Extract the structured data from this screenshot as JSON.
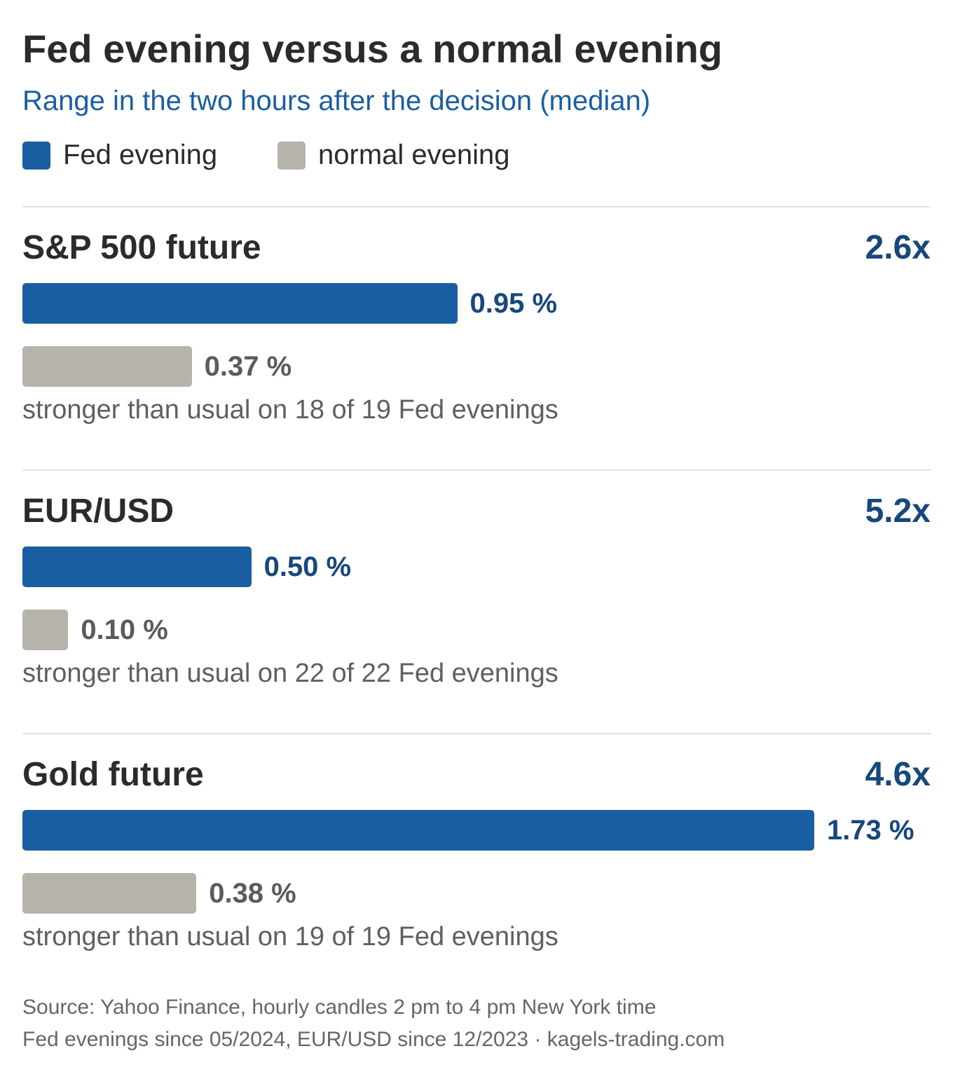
{
  "title": "Fed evening versus a normal evening",
  "subtitle": "Range in the two hours after the decision (median)",
  "legend": [
    {
      "label": "Fed evening",
      "color": "#1a5ea2"
    },
    {
      "label": "normal evening",
      "color": "#b6b3aa"
    }
  ],
  "chart_data": {
    "type": "bar",
    "orientation": "horizontal",
    "unit": "%",
    "xlim": [
      0,
      1.73
    ],
    "series_names": [
      "Fed evening",
      "normal evening"
    ],
    "panels": [
      {
        "name": "S&P 500 future",
        "ratio": "2.6x",
        "fed": 0.95,
        "fed_label": "0.95 %",
        "normal": 0.37,
        "normal_label": "0.37 %",
        "note": "stronger than usual on 18 of 19 Fed evenings"
      },
      {
        "name": "EUR/USD",
        "ratio": "5.2x",
        "fed": 0.5,
        "fed_label": "0.50 %",
        "normal": 0.1,
        "normal_label": "0.10 %",
        "note": "stronger than usual on 22 of 22 Fed evenings"
      },
      {
        "name": "Gold future",
        "ratio": "4.6x",
        "fed": 1.73,
        "fed_label": "1.73 %",
        "normal": 0.38,
        "normal_label": "0.38 %",
        "note": "stronger than usual on 19 of 19 Fed evenings"
      }
    ]
  },
  "source": {
    "line1": "Source: Yahoo Finance, hourly candles 2 pm to 4 pm New York time",
    "line2": "Fed evenings since 05/2024, EUR/USD since 12/2023 · kagels-trading.com"
  }
}
